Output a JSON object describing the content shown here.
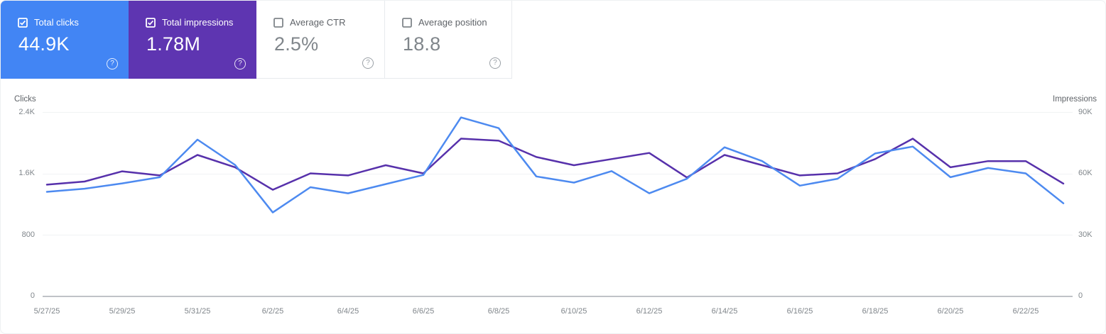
{
  "cards": [
    {
      "label": "Total clicks",
      "value": "44.9K",
      "selected": true,
      "color": "#4285f4"
    },
    {
      "label": "Total impressions",
      "value": "1.78M",
      "selected": true,
      "color": "#5e35b1"
    },
    {
      "label": "Average CTR",
      "value": "2.5%",
      "selected": false,
      "color": "#ffffff"
    },
    {
      "label": "Average position",
      "value": "18.8",
      "selected": false,
      "color": "#ffffff"
    }
  ],
  "icons": {
    "help_glyph": "?"
  },
  "chart_data": {
    "type": "line",
    "x": [
      "5/27/25",
      "5/28/25",
      "5/29/25",
      "5/30/25",
      "5/31/25",
      "6/1/25",
      "6/2/25",
      "6/3/25",
      "6/4/25",
      "6/5/25",
      "6/6/25",
      "6/7/25",
      "6/8/25",
      "6/9/25",
      "6/10/25",
      "6/11/25",
      "6/12/25",
      "6/13/25",
      "6/14/25",
      "6/15/25",
      "6/16/25",
      "6/17/25",
      "6/18/25",
      "6/19/25",
      "6/20/25",
      "6/21/25",
      "6/22/25",
      "6/23/25"
    ],
    "x_ticks": [
      "5/27/25",
      "5/29/25",
      "5/31/25",
      "6/2/25",
      "6/4/25",
      "6/6/25",
      "6/8/25",
      "6/10/25",
      "6/12/25",
      "6/14/25",
      "6/16/25",
      "6/18/25",
      "6/20/25",
      "6/22/25"
    ],
    "series": [
      {
        "name": "Clicks",
        "axis": "left",
        "color": "#4d8af0",
        "values": [
          1360,
          1400,
          1470,
          1550,
          2040,
          1710,
          1090,
          1420,
          1340,
          1460,
          1580,
          2330,
          2190,
          1560,
          1480,
          1630,
          1340,
          1530,
          1940,
          1760,
          1440,
          1530,
          1860,
          1950,
          1550,
          1670,
          1600,
          1210
        ]
      },
      {
        "name": "Impressions",
        "axis": "right",
        "color": "#5731ab",
        "values": [
          54500,
          56000,
          61000,
          59000,
          69000,
          63000,
          52000,
          60000,
          59000,
          64000,
          60000,
          77000,
          76000,
          68000,
          64000,
          67000,
          70000,
          58000,
          69000,
          64000,
          59000,
          60000,
          67000,
          77000,
          63000,
          66000,
          66000,
          55000
        ]
      }
    ],
    "left_axis": {
      "label": "Clicks",
      "ticks": [
        "2.4K",
        "1.6K",
        "800",
        "0"
      ],
      "max": 2400
    },
    "right_axis": {
      "label": "Impressions",
      "ticks": [
        "90K",
        "60K",
        "30K",
        "0"
      ],
      "max": 90000
    },
    "grid": true,
    "legend_position": "none"
  }
}
